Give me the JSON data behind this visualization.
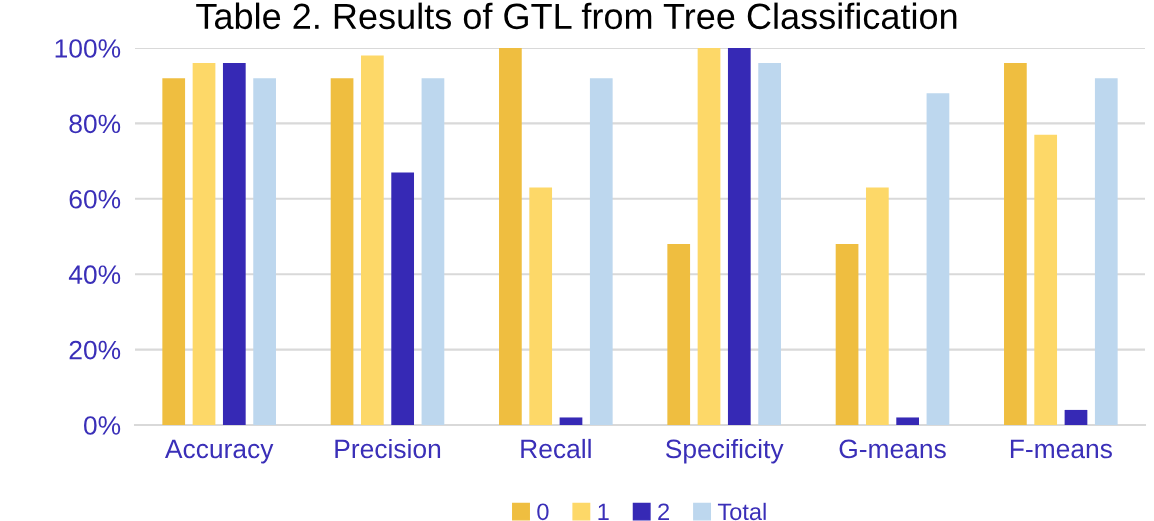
{
  "chart_data": {
    "type": "bar",
    "title": "Table 2. Results of GTL from Tree Classification",
    "categories": [
      "Accuracy",
      "Precision",
      "Recall",
      "Specificity",
      "G-means",
      "F-means"
    ],
    "series": [
      {
        "name": "0",
        "color": "#efbe40",
        "values": [
          92,
          92,
          100,
          48,
          48,
          96
        ]
      },
      {
        "name": "1",
        "color": "#fdd868",
        "values": [
          96,
          98,
          63,
          100,
          63,
          77
        ]
      },
      {
        "name": "2",
        "color": "#3629b5",
        "values": [
          96,
          67,
          2,
          100,
          2,
          4
        ]
      },
      {
        "name": "Total",
        "color": "#bdd7ee",
        "values": [
          92,
          92,
          92,
          96,
          88,
          92
        ]
      }
    ],
    "ylim": [
      0,
      100
    ],
    "yticks": [
      {
        "value": 0,
        "label": "0%"
      },
      {
        "value": 20,
        "label": "20%"
      },
      {
        "value": 40,
        "label": "40%"
      },
      {
        "value": 60,
        "label": "60%"
      },
      {
        "value": 80,
        "label": "80%"
      },
      {
        "value": 100,
        "label": "100%"
      }
    ],
    "grid": "y",
    "legend": "bottom"
  }
}
